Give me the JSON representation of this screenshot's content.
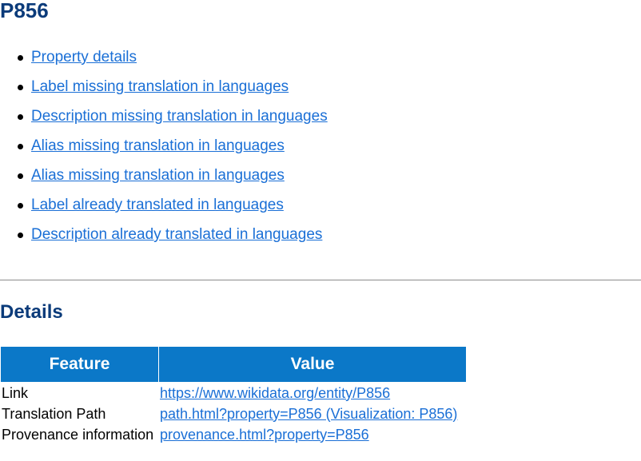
{
  "page": {
    "title": "P856"
  },
  "nav": {
    "items": [
      {
        "label": "Property details"
      },
      {
        "label": "Label missing translation in languages"
      },
      {
        "label": "Description missing translation in languages"
      },
      {
        "label": "Alias missing translation in languages"
      },
      {
        "label": "Alias missing translation in languages"
      },
      {
        "label": "Label already translated in languages"
      },
      {
        "label": "Description already translated in languages"
      }
    ]
  },
  "details": {
    "title": "Details",
    "headers": {
      "feature": "Feature",
      "value": "Value"
    },
    "rows": [
      {
        "feature": "Link",
        "value": "https://www.wikidata.org/entity/P856"
      },
      {
        "feature": "Translation Path",
        "value": "path.html?property=P856 (Visualization: P856)"
      },
      {
        "feature": "Provenance information",
        "value": "provenance.html?property=P856"
      }
    ]
  },
  "colors": {
    "heading": "#0b3b7a",
    "link": "#1a6fd6",
    "table_header": "#0b78c8"
  }
}
